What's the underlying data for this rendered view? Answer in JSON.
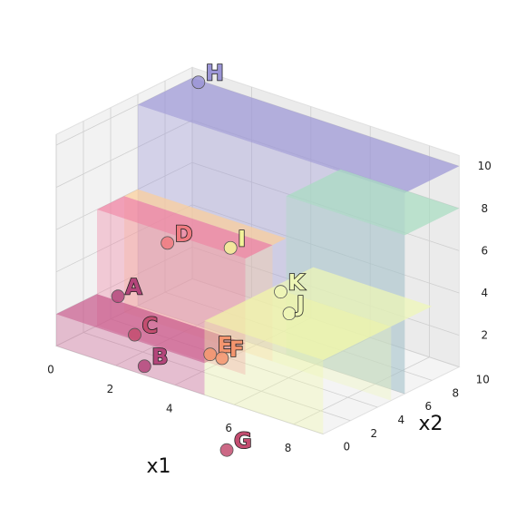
{
  "chart_data": {
    "type": "3d-surface-scatter",
    "xlabel": "x1",
    "ylabel": "x2",
    "zlabel": "",
    "xlim": [
      0,
      9
    ],
    "ylim": [
      0,
      10
    ],
    "zlim": [
      0.5,
      10.5
    ],
    "x_ticks": [
      "0",
      "2",
      "4",
      "6",
      "8"
    ],
    "y_ticks": [
      "0",
      "2",
      "4",
      "6",
      "8",
      "10"
    ],
    "z_ticks": [
      "2",
      "4",
      "6",
      "8",
      "10"
    ],
    "grid": true,
    "surface": {
      "colormap": "viridis-like",
      "pieces": [
        {
          "x1": [
            0,
            5
          ],
          "x2": [
            0,
            3
          ],
          "z": 2,
          "color": "#c85a8c"
        },
        {
          "x1": [
            0,
            5
          ],
          "x2": [
            3,
            5
          ],
          "z": 6,
          "color": "#f07ea0"
        },
        {
          "x1": [
            0,
            5
          ],
          "x2": [
            5,
            6
          ],
          "z": 6,
          "color": "#fbcf9a"
        },
        {
          "x1": [
            5,
            9
          ],
          "x2": [
            0,
            5
          ],
          "z": 4,
          "color": "#f2f8a8"
        },
        {
          "x1": [
            5,
            9
          ],
          "x2": [
            5,
            8
          ],
          "z": 4,
          "color": "#eef6b6"
        },
        {
          "x1": [
            0,
            9
          ],
          "x2": [
            6,
            10
          ],
          "z": 10,
          "color": "#9b95d6"
        },
        {
          "x1": [
            5,
            9
          ],
          "x2": [
            6,
            10
          ],
          "z": 8,
          "color": "#a7dcc0"
        }
      ]
    },
    "points": [
      {
        "label": "A",
        "x1": 1.9,
        "x2": 0.4,
        "z": 3.6,
        "color": "#b3457a"
      },
      {
        "label": "B",
        "x1": 2.7,
        "x2": 0.6,
        "z": 0.6,
        "color": "#b3457a"
      },
      {
        "label": "C",
        "x1": 2.6,
        "x2": 0.1,
        "z": 2.2,
        "color": "#c34d70"
      },
      {
        "label": "D",
        "x1": 2.1,
        "x2": 3.6,
        "z": 5.2,
        "color": "#f07a80"
      },
      {
        "label": "E",
        "x1": 5.1,
        "x2": 0.2,
        "z": 2.4,
        "color": "#f4956e"
      },
      {
        "label": "F",
        "x1": 5.5,
        "x2": 0.2,
        "z": 2.4,
        "color": "#f4956e"
      },
      {
        "label": "G",
        "x1": 5.2,
        "x2": 1.2,
        "z": -2.4,
        "color": "#c34d70"
      },
      {
        "label": "H",
        "x1": 0.3,
        "x2": 9.8,
        "z": 10.0,
        "color": "#9b95d6"
      },
      {
        "label": "I",
        "x1": 3.4,
        "x2": 5.4,
        "z": 5.0,
        "color": "#f4f49a"
      },
      {
        "label": "J",
        "x1": 5.2,
        "x2": 5.8,
        "z": 2.6,
        "color": "#eef6b6"
      },
      {
        "label": "K",
        "x1": 5.0,
        "x2": 5.6,
        "z": 3.6,
        "color": "#eef6b6"
      }
    ]
  }
}
